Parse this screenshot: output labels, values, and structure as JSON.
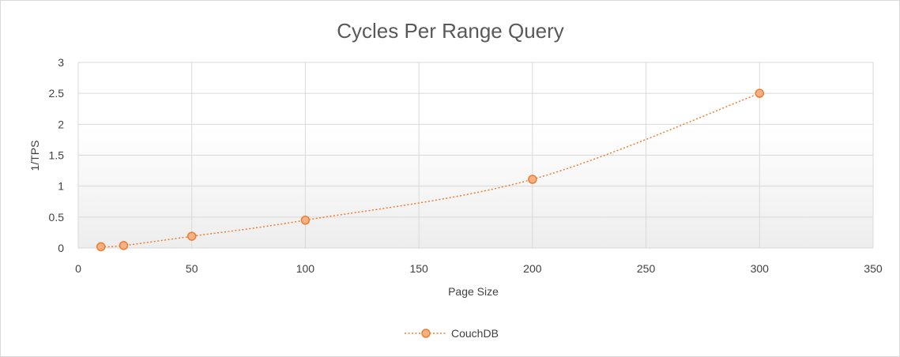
{
  "chart_data": {
    "type": "scatter",
    "title": "Cycles Per Range Query",
    "xlabel": "Page Size",
    "ylabel": "1/TPS",
    "xlim": [
      0,
      350
    ],
    "ylim": [
      0,
      3
    ],
    "x_ticks": [
      "0",
      "50",
      "100",
      "150",
      "200",
      "250",
      "300",
      "350"
    ],
    "y_ticks": [
      "0",
      "0.5",
      "1",
      "1.5",
      "2",
      "2.5",
      "3"
    ],
    "grid": true,
    "legend_position": "bottom",
    "series": [
      {
        "name": "CouchDB",
        "color": "#ed7d31",
        "marker_fill": "#f4b183",
        "line_style": "dotted-smooth",
        "points": [
          {
            "x": 10,
            "y": 0.02
          },
          {
            "x": 20,
            "y": 0.04
          },
          {
            "x": 50,
            "y": 0.19
          },
          {
            "x": 100,
            "y": 0.45
          },
          {
            "x": 200,
            "y": 1.11
          },
          {
            "x": 300,
            "y": 2.5
          }
        ]
      }
    ]
  }
}
